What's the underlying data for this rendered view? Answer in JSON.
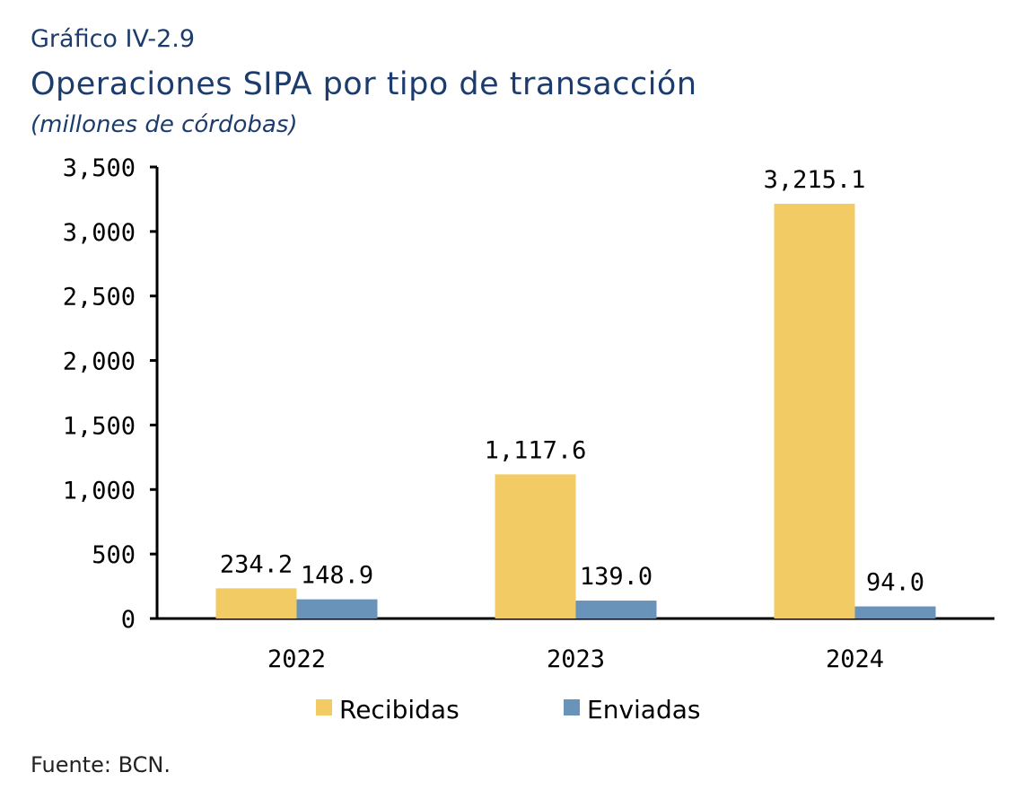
{
  "header": {
    "figure_number": "Gráfico IV-2.9",
    "title": "Operaciones SIPA por tipo de transacción",
    "units": "(millones de córdobas)"
  },
  "footer": {
    "source": "Fuente: BCN."
  },
  "colors": {
    "recibidas": "#f2cb64",
    "enviadas": "#6a93b9",
    "axis": "#000000"
  },
  "chart_data": {
    "type": "bar",
    "title": "Operaciones SIPA por tipo de transacción",
    "xlabel": "",
    "ylabel": "",
    "categories": [
      "2022",
      "2023",
      "2024"
    ],
    "series": [
      {
        "name": "Recibidas",
        "values": [
          234.2,
          1117.6,
          3215.1
        ],
        "labels": [
          "234.2",
          "1,117.6",
          "3,215.1"
        ]
      },
      {
        "name": "Enviadas",
        "values": [
          148.9,
          139.0,
          94.0
        ],
        "labels": [
          "148.9",
          "139.0",
          "94.0"
        ]
      }
    ],
    "ylim": [
      0,
      3500
    ],
    "yticks": [
      0,
      500,
      1000,
      1500,
      2000,
      2500,
      3000,
      3500
    ],
    "ytick_labels": [
      "0",
      "500",
      "1,000",
      "1,500",
      "2,000",
      "2,500",
      "3,000",
      "3,500"
    ],
    "grid": false,
    "legend_position": "bottom"
  }
}
